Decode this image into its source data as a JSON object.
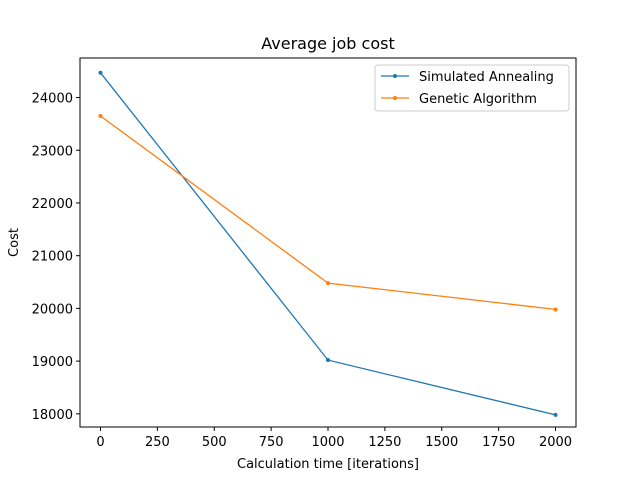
{
  "chart_data": {
    "type": "line",
    "title": "Average job cost",
    "xlabel": "Calculation time [iterations]",
    "ylabel": "Cost",
    "xlim": [
      -90,
      2090
    ],
    "ylim": [
      17750,
      24750
    ],
    "xticks": [
      0,
      250,
      500,
      750,
      1000,
      1250,
      1500,
      1750,
      2000
    ],
    "yticks": [
      18000,
      19000,
      20000,
      21000,
      22000,
      23000,
      24000
    ],
    "grid": false,
    "legend_position": "top-right",
    "x": [
      0,
      1000,
      2000
    ],
    "series": [
      {
        "name": "Simulated Annealing",
        "color": "#1f77b4",
        "values": [
          24470,
          19020,
          17980
        ]
      },
      {
        "name": "Genetic Algorithm",
        "color": "#ff7f0e",
        "values": [
          23650,
          20480,
          19980
        ]
      }
    ]
  }
}
